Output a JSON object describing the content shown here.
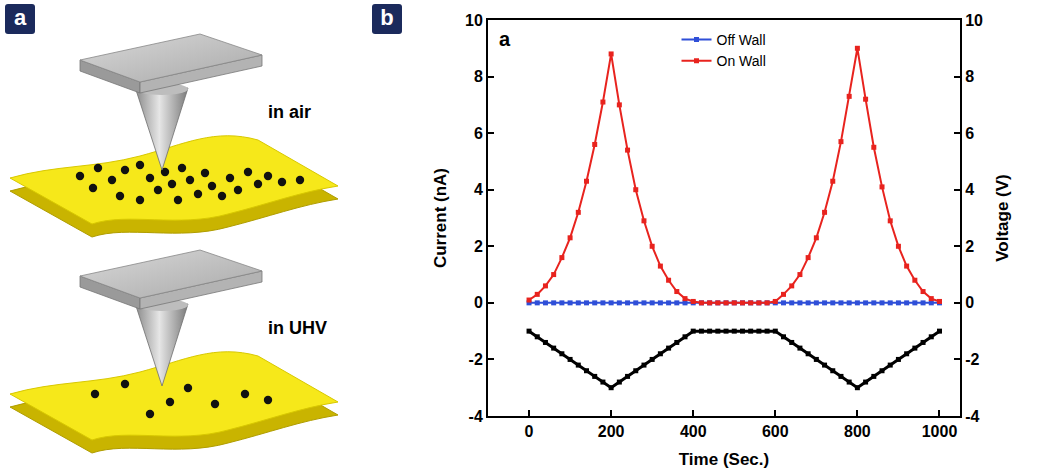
{
  "panel_labels": [
    "a",
    "b"
  ],
  "diagram": {
    "labels": [
      "in air",
      "in UHV"
    ]
  },
  "chart_data": {
    "type": "line",
    "annotations": [
      "a"
    ],
    "xlabel": "Time (Sec.)",
    "ylabel": "Current (nA)",
    "y2label": "Voltage (V)",
    "xlim": [
      -100,
      1050
    ],
    "xticks": [
      0,
      200,
      400,
      600,
      800,
      1000
    ],
    "ylim": [
      -4,
      10
    ],
    "yticks": [
      -4,
      -2,
      0,
      2,
      4,
      6,
      8,
      10
    ],
    "y2lim": [
      -4,
      10
    ],
    "y2ticks": [
      -4,
      -2,
      0,
      2,
      4,
      6,
      8,
      10
    ],
    "grid": false,
    "legend": "top",
    "marker": "square",
    "x": [
      0,
      20,
      40,
      60,
      80,
      100,
      120,
      140,
      160,
      180,
      200,
      220,
      240,
      260,
      280,
      300,
      320,
      340,
      360,
      380,
      400,
      420,
      440,
      460,
      480,
      500,
      520,
      540,
      560,
      580,
      600,
      620,
      640,
      660,
      680,
      700,
      720,
      740,
      760,
      780,
      800,
      820,
      840,
      860,
      880,
      900,
      920,
      940,
      960,
      980,
      1000
    ],
    "series": [
      {
        "name": "Off Wall",
        "color": "#2f4fd8",
        "values": [
          0,
          0,
          0,
          0,
          0,
          0,
          0,
          0,
          0,
          0,
          0,
          0,
          0,
          0,
          0,
          0,
          0,
          0,
          0,
          0,
          0,
          0,
          0,
          0,
          0,
          0,
          0,
          0,
          0,
          0,
          0,
          0,
          0,
          0,
          0,
          0,
          0,
          0,
          0,
          0,
          0,
          0,
          0,
          0,
          0,
          0,
          0,
          0,
          0,
          0,
          0
        ]
      },
      {
        "name": "On Wall",
        "color": "#e8231e",
        "values": [
          0.1,
          0.3,
          0.6,
          1.0,
          1.6,
          2.3,
          3.2,
          4.3,
          5.6,
          7.1,
          8.8,
          7.0,
          5.4,
          4.0,
          2.9,
          2.0,
          1.3,
          0.8,
          0.4,
          0.15,
          0.05,
          0,
          0,
          0,
          0,
          0,
          0,
          0,
          0,
          0,
          0.05,
          0.3,
          0.6,
          1.0,
          1.6,
          2.3,
          3.2,
          4.3,
          5.7,
          7.3,
          9.0,
          7.2,
          5.5,
          4.1,
          2.9,
          2.0,
          1.3,
          0.8,
          0.4,
          0.15,
          0.05
        ]
      },
      {
        "color": "#000000",
        "axis": "y2",
        "values": [
          -1,
          -1.2,
          -1.4,
          -1.6,
          -1.8,
          -2,
          -2.2,
          -2.4,
          -2.6,
          -2.8,
          -3,
          -2.8,
          -2.6,
          -2.4,
          -2.2,
          -2,
          -1.8,
          -1.6,
          -1.4,
          -1.2,
          -1,
          -1,
          -1,
          -1,
          -1,
          -1,
          -1,
          -1,
          -1,
          -1,
          -1,
          -1.2,
          -1.4,
          -1.6,
          -1.8,
          -2,
          -2.2,
          -2.4,
          -2.6,
          -2.8,
          -3,
          -2.8,
          -2.6,
          -2.4,
          -2.2,
          -2,
          -1.8,
          -1.6,
          -1.4,
          -1.2,
          -1
        ]
      }
    ]
  }
}
